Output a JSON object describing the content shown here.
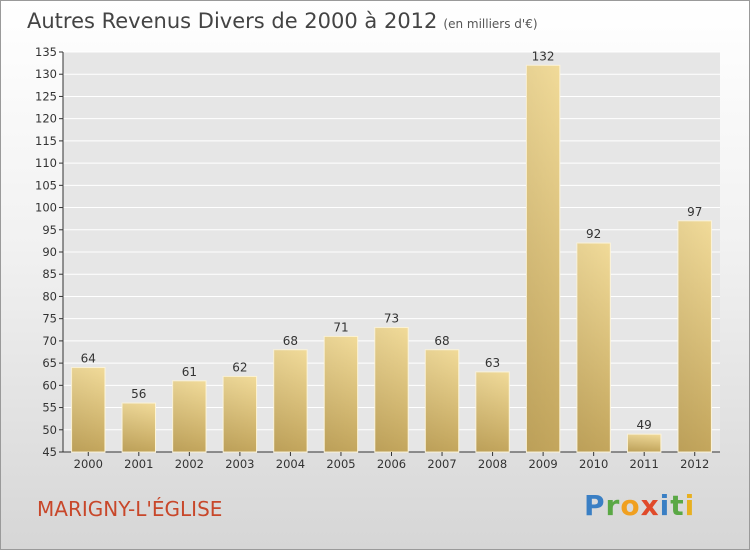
{
  "header": {
    "title": "Autres Revenus Divers de 2000 à 2012",
    "subtitle": "(en milliers d'€)"
  },
  "footer": {
    "commune": "MARIGNY-L'ÉGLISE",
    "logo_letters": [
      {
        "ch": "P",
        "color": "#3a7fc4"
      },
      {
        "ch": "r",
        "color": "#5aa845"
      },
      {
        "ch": "o",
        "color": "#f0a020"
      },
      {
        "ch": "x",
        "color": "#e04a2a"
      },
      {
        "ch": "i",
        "color": "#3a7fc4"
      },
      {
        "ch": "t",
        "color": "#5aa845"
      },
      {
        "ch": "i",
        "color": "#e8b020"
      }
    ]
  },
  "chart_data": {
    "type": "bar",
    "title": "Autres Revenus Divers de 2000 à 2012",
    "subtitle": "(en milliers d'€)",
    "categories": [
      "2000",
      "2001",
      "2002",
      "2003",
      "2004",
      "2005",
      "2006",
      "2007",
      "2008",
      "2009",
      "2010",
      "2011",
      "2012"
    ],
    "values": [
      64,
      56,
      61,
      62,
      68,
      71,
      73,
      68,
      63,
      132,
      92,
      49,
      97
    ],
    "ylim": [
      45,
      135
    ],
    "yticks": [
      45,
      50,
      55,
      60,
      65,
      70,
      75,
      80,
      85,
      90,
      95,
      100,
      105,
      110,
      115,
      120,
      125,
      130,
      135
    ],
    "grid": true,
    "bar_color": "#e9cf8a"
  }
}
